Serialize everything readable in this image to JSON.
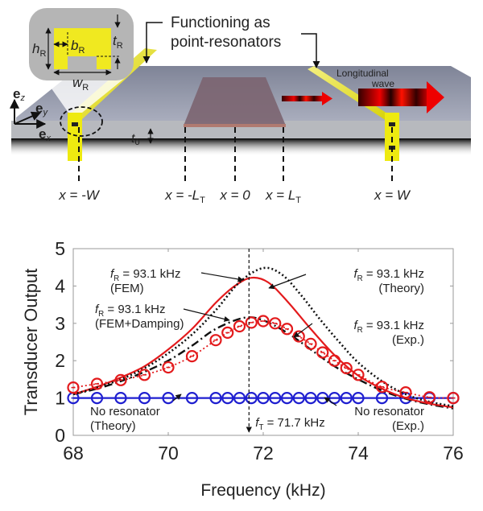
{
  "schematic": {
    "callout": {
      "line1": "Functioning as",
      "line2": "point-resonators"
    },
    "wave_label": {
      "line1": "Longitudinal",
      "line2": "wave"
    },
    "inset": {
      "h": "h",
      "h_sub": "R",
      "b": "b",
      "b_sub": "R",
      "t": "t",
      "t_sub": "R",
      "w": "w",
      "w_sub": "R"
    },
    "axes": {
      "ez": "e",
      "ez_sub": "z",
      "ey": "e",
      "ey_sub": "y",
      "ex": "e",
      "ex_sub": "x"
    },
    "thickness": {
      "t": "t",
      "t_sub": "0"
    },
    "positions": [
      {
        "pre": "x = -",
        "var": "W",
        "sub": ""
      },
      {
        "pre": "x = -",
        "var": "L",
        "sub": "T"
      },
      {
        "pre": "x = 0",
        "var": "",
        "sub": ""
      },
      {
        "pre": "x = ",
        "var": "L",
        "sub": "T"
      },
      {
        "pre": "x = ",
        "var": "W",
        "sub": ""
      }
    ],
    "colors": {
      "plate": "#9a9eaf",
      "plate_edge": "#b4b6bc",
      "resonator": "#e6e000",
      "transducer": "#7b6470",
      "wave": "#e01010"
    }
  },
  "chart_data": {
    "type": "line",
    "title": "",
    "xlabel": "Frequency (kHz)",
    "ylabel": "Transducer Output",
    "xlim": [
      68,
      76
    ],
    "ylim": [
      0,
      5
    ],
    "xticks": [
      68,
      70,
      72,
      74,
      76
    ],
    "yticks": [
      0,
      1,
      2,
      3,
      4,
      5
    ],
    "grid": false,
    "vline": {
      "x": 71.7,
      "label_pre": "f",
      "label_sub": "T",
      "label_post": " = 71.7 kHz"
    },
    "series": [
      {
        "name": "fR = 93.1 kHz (FEM)",
        "style": "solid",
        "color": "#e31a1c",
        "x": [
          68,
          68.5,
          69,
          69.5,
          70,
          70.5,
          71,
          71.4,
          71.75,
          72.1,
          72.5,
          73,
          73.5,
          74,
          74.5,
          75,
          75.5,
          76
        ],
        "y": [
          1.1,
          1.3,
          1.55,
          1.85,
          2.3,
          2.85,
          3.55,
          4.0,
          4.22,
          4.1,
          3.6,
          2.85,
          2.15,
          1.6,
          1.25,
          1.0,
          0.85,
          0.75
        ]
      },
      {
        "name": "fR = 93.1 kHz (Theory)",
        "style": "dotted",
        "color": "#111111",
        "x": [
          68,
          68.5,
          69,
          69.5,
          70,
          70.5,
          71,
          71.5,
          72,
          72.4,
          72.8,
          73.2,
          73.6,
          74,
          74.5,
          75,
          75.5,
          76
        ],
        "y": [
          1.1,
          1.28,
          1.5,
          1.8,
          2.2,
          2.7,
          3.35,
          4.1,
          4.48,
          4.3,
          3.75,
          3.1,
          2.5,
          1.95,
          1.45,
          1.1,
          0.9,
          0.78
        ]
      },
      {
        "name": "fR = 93.1 kHz (FEM+Damping)",
        "style": "dashdot",
        "color": "#111111",
        "x": [
          68,
          68.5,
          69,
          69.5,
          70,
          70.5,
          71,
          71.6,
          72,
          72.5,
          73,
          73.5,
          74,
          74.5,
          75,
          75.5,
          76
        ],
        "y": [
          1.1,
          1.25,
          1.45,
          1.7,
          2.0,
          2.4,
          2.85,
          3.15,
          3.08,
          2.75,
          2.3,
          1.85,
          1.5,
          1.2,
          0.98,
          0.83,
          0.72
        ]
      },
      {
        "name": "fR = 93.1 kHz (Exp.)",
        "style": "dotted-markers",
        "color": "#e31a1c",
        "x": [
          68,
          68.5,
          69,
          69.5,
          70,
          70.5,
          71,
          71.25,
          71.5,
          71.75,
          72,
          72.25,
          72.5,
          72.75,
          73,
          73.25,
          73.5,
          73.75,
          74,
          74.5,
          75,
          75.5,
          76
        ],
        "y": [
          1.28,
          1.38,
          1.48,
          1.62,
          1.82,
          2.12,
          2.55,
          2.75,
          2.92,
          3.02,
          3.06,
          3.0,
          2.85,
          2.65,
          2.45,
          2.22,
          2.0,
          1.8,
          1.62,
          1.3,
          1.15,
          1.02,
          1.0
        ]
      },
      {
        "name": "No resonator (Theory)",
        "style": "solid",
        "color": "#1f1fd0",
        "x": [
          68,
          76
        ],
        "y": [
          1.0,
          1.0
        ]
      },
      {
        "name": "No resonator (Exp.)",
        "style": "markers",
        "color": "#1f1fd0",
        "x": [
          68,
          68.5,
          69,
          69.5,
          70,
          70.5,
          71,
          71.25,
          71.5,
          71.75,
          72,
          72.25,
          72.5,
          72.75,
          73,
          73.25,
          73.5,
          73.75,
          74,
          74.5,
          75,
          75.5,
          76
        ],
        "y": [
          1,
          1,
          1,
          1,
          1,
          1,
          1,
          1,
          1,
          1,
          1,
          1,
          1,
          1,
          1,
          1,
          1,
          1,
          1,
          1,
          1,
          1,
          1
        ]
      }
    ],
    "annotations": [
      {
        "pre": "f",
        "sub": "R",
        "post": " = 93.1 kHz",
        "line2": "(FEM)"
      },
      {
        "pre": "f",
        "sub": "R",
        "post": " = 93.1 kHz",
        "line2": "(FEM+Damping)"
      },
      {
        "pre": "f",
        "sub": "R",
        "post": " = 93.1 kHz",
        "line2": "(Theory)"
      },
      {
        "pre": "f",
        "sub": "R",
        "post": " = 93.1 kHz",
        "line2": "(Exp.)"
      },
      {
        "pre": "",
        "sub": "",
        "post": "No resonator",
        "line2": "(Theory)"
      },
      {
        "pre": "",
        "sub": "",
        "post": "No resonator",
        "line2": "(Exp.)"
      }
    ]
  }
}
